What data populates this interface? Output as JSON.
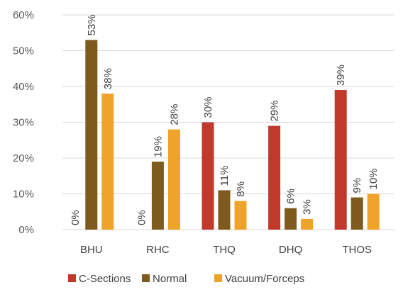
{
  "chart_data": {
    "type": "bar",
    "categories": [
      "BHU",
      "RHC",
      "THQ",
      "DHQ",
      "THOS"
    ],
    "series": [
      {
        "name": "C-Sections",
        "values": [
          0,
          0,
          30,
          29,
          39
        ],
        "labels": [
          "0%",
          "0%",
          "30%",
          "29%",
          "39%"
        ],
        "color": "#c0392b"
      },
      {
        "name": "Normal",
        "values": [
          53,
          19,
          11,
          6,
          9
        ],
        "labels": [
          "53%",
          "19%",
          "11%",
          "6%",
          "9%"
        ],
        "color": "#7f5a1d"
      },
      {
        "name": "Vacuum/Forceps",
        "values": [
          38,
          28,
          8,
          3,
          10
        ],
        "labels": [
          "38%",
          "28%",
          "8%",
          "3%",
          "10%"
        ],
        "color": "#f0a32a"
      }
    ],
    "yticks": [
      "0%",
      "10%",
      "20%",
      "30%",
      "40%",
      "50%",
      "60%"
    ],
    "ylim": [
      0,
      60
    ],
    "grid": true,
    "legend_position": "bottom"
  }
}
